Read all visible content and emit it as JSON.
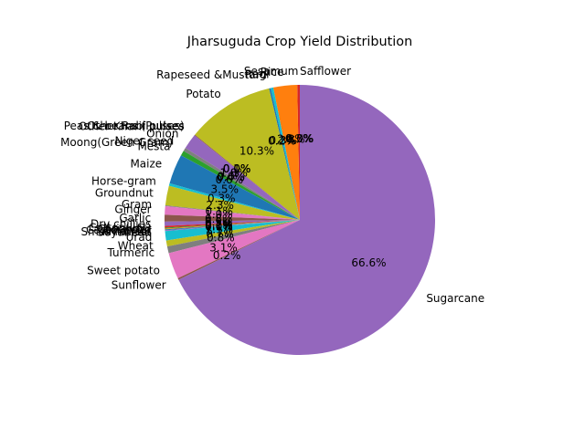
{
  "chart_data": {
    "type": "pie",
    "title": "Jharsuguda Crop Yield Distribution",
    "start_angle_deg": 90,
    "direction": "counterclockwise",
    "slices": [
      {
        "label": "Safflower",
        "value": 0.0,
        "pct_label": "0.0%",
        "color": "#1f77b4"
      },
      {
        "label": "Sesamum",
        "value": 0.3,
        "pct_label": "0.3%",
        "color": "#d62728"
      },
      {
        "label": "Rice",
        "value": 2.8,
        "pct_label": "2.8%",
        "color": "#ff7f0e"
      },
      {
        "label": "Ragi",
        "value": 0.3,
        "pct_label": "0.3%",
        "color": "#17becf"
      },
      {
        "label": "Rapeseed &Mustard",
        "value": 0.2,
        "pct_label": "0.2%",
        "color": "#1f77b4"
      },
      {
        "label": "Potato",
        "value": 10.3,
        "pct_label": "10.3%",
        "color": "#bcbd22"
      },
      {
        "label": "Peas & beans (Pulses)",
        "value": 0.0,
        "pct_label": "0.0%",
        "color": "#ff7f0e"
      },
      {
        "label": "Other Rabi pulses",
        "value": 0.0,
        "pct_label": "0.0%",
        "color": "#2ca02c"
      },
      {
        "label": "Other Kharif pulses",
        "value": 0.1,
        "pct_label": "0.1%",
        "color": "#8c564b"
      },
      {
        "label": "Onion",
        "value": 1.8,
        "pct_label": "1.8%",
        "color": "#9467bd"
      },
      {
        "label": "Niger seed",
        "value": 0.0,
        "pct_label": "0.0%",
        "color": "#e377c2"
      },
      {
        "label": "Moong(Green Gram)",
        "value": 0.4,
        "pct_label": "0.4%",
        "color": "#7f7f7f"
      },
      {
        "label": "Mesta",
        "value": 0.6,
        "pct_label": "0.6%",
        "color": "#2ca02c"
      },
      {
        "label": "Maize",
        "value": 3.5,
        "pct_label": "3.5%",
        "color": "#1f77b4"
      },
      {
        "label": "Horse-gram",
        "value": 0.3,
        "pct_label": "0.3%",
        "color": "#17becf"
      },
      {
        "label": "Groundnut",
        "value": 2.3,
        "pct_label": "2.3%",
        "color": "#bcbd22"
      },
      {
        "label": "Gram",
        "value": 0.1,
        "pct_label": "0.1%",
        "color": "#7f7f7f"
      },
      {
        "label": "Ginger",
        "value": 1.0,
        "pct_label": "1.0%",
        "color": "#e377c2"
      },
      {
        "label": "Garlic",
        "value": 0.8,
        "pct_label": "0.8%",
        "color": "#8c564b"
      },
      {
        "label": "Dry chillies",
        "value": 0.5,
        "pct_label": "0.5%",
        "color": "#9467bd"
      },
      {
        "label": "Cotton(lint)",
        "value": 0.2,
        "pct_label": "0.2%",
        "color": "#d62728"
      },
      {
        "label": "Coriander",
        "value": 0.1,
        "pct_label": "0.1%",
        "color": "#2ca02c"
      },
      {
        "label": "Castor seed",
        "value": 0.1,
        "pct_label": "0.1%",
        "color": "#ff7f0e"
      },
      {
        "label": "Arhar/Tur",
        "value": 0.1,
        "pct_label": "0.1%",
        "color": "#1f77b4"
      },
      {
        "label": "Small millets",
        "value": 0.1,
        "pct_label": "0.1%",
        "color": "#9467bd"
      },
      {
        "label": "Soyabean",
        "value": 0.0,
        "pct_label": "0.0%",
        "color": "#d62728"
      },
      {
        "label": "Urad",
        "value": 1.1,
        "pct_label": "1.1%",
        "color": "#17becf"
      },
      {
        "label": "Wheat",
        "value": 0.7,
        "pct_label": "0.7%",
        "color": "#bcbd22"
      },
      {
        "label": "Turmeric",
        "value": 0.8,
        "pct_label": "0.8%",
        "color": "#7f7f7f"
      },
      {
        "label": "Sweet potato",
        "value": 3.1,
        "pct_label": "3.1%",
        "color": "#e377c2"
      },
      {
        "label": "Sunflower",
        "value": 0.2,
        "pct_label": "0.2%",
        "color": "#8c564b"
      },
      {
        "label": "Sugarcane",
        "value": 66.6,
        "pct_label": "66.6%",
        "color": "#9467bd"
      }
    ]
  }
}
